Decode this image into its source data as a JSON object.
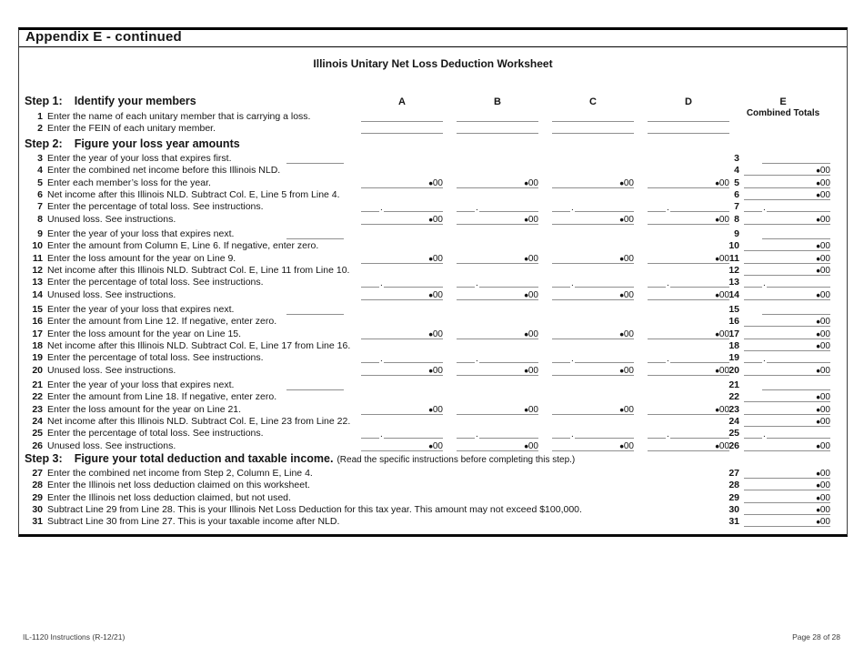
{
  "page": {
    "heading": "Appendix E - continued",
    "title": "Illinois Unitary Net Loss Deduction Worksheet",
    "footer_left": "IL-1120 Instructions (R-12/21)",
    "footer_right": "Page 28 of 28"
  },
  "columns": {
    "headers": [
      "A",
      "B",
      "C",
      "D",
      "E"
    ],
    "e_subheader": "Combined Totals"
  },
  "symbols": {
    "decimal": "•",
    "cents": "00",
    "period": "."
  },
  "steps": [
    {
      "label": "Step 1:",
      "title": "Identify your members",
      "note": ""
    },
    {
      "label": "Step 2:",
      "title": "Figure your loss year amounts",
      "note": ""
    },
    {
      "label": "Step 3:",
      "title": "Figure your total deduction and taxable income.",
      "note": "(Read the specific instructions before completing this step.)"
    }
  ],
  "rows": [
    {
      "num": "1",
      "type": "name",
      "text": "Enter the name of each unitary member that is carrying a loss."
    },
    {
      "num": "2",
      "type": "name",
      "text": "Enter the FEIN of each unitary member."
    },
    {
      "num": "3",
      "type": "year",
      "text": "Enter the year of your loss that expires first."
    },
    {
      "num": "4",
      "type": "amount_e",
      "text": "Enter the combined net income before this Illinois NLD."
    },
    {
      "num": "5",
      "type": "amount_all",
      "text": "Enter each member’s loss for the year."
    },
    {
      "num": "6",
      "type": "amount_e",
      "text": "Net income after this Illinois NLD. Subtract Col. E, Line 5 from Line 4."
    },
    {
      "num": "7",
      "type": "percent",
      "text": "Enter the percentage of total loss. See instructions."
    },
    {
      "num": "8",
      "type": "amount_all",
      "text": "Unused loss. See instructions."
    },
    {
      "num": "9",
      "type": "year",
      "text": "Enter the year of your loss that expires next."
    },
    {
      "num": "10",
      "type": "amount_e",
      "text": "Enter the amount from Column E, Line 6. If negative, enter zero."
    },
    {
      "num": "11",
      "type": "amount_all",
      "text": "Enter the loss amount for the year on Line 9."
    },
    {
      "num": "12",
      "type": "amount_e",
      "text": "Net income after this Illinois NLD. Subtract Col. E, Line 11 from Line 10."
    },
    {
      "num": "13",
      "type": "percent",
      "text": "Enter the percentage of total loss. See instructions."
    },
    {
      "num": "14",
      "type": "amount_all",
      "text": "Unused loss. See instructions."
    },
    {
      "num": "15",
      "type": "year",
      "text": "Enter the year of your loss that expires next."
    },
    {
      "num": "16",
      "type": "amount_e",
      "text": "Enter the amount from Line 12. If negative, enter zero."
    },
    {
      "num": "17",
      "type": "amount_all",
      "text": "Enter the loss amount for the year on Line 15."
    },
    {
      "num": "18",
      "type": "amount_e",
      "text": "Net income after this Illinois NLD. Subtract Col. E, Line 17 from Line 16."
    },
    {
      "num": "19",
      "type": "percent",
      "text": "Enter the percentage of total loss. See instructions."
    },
    {
      "num": "20",
      "type": "amount_all",
      "text": "Unused loss. See instructions."
    },
    {
      "num": "21",
      "type": "year",
      "text": "Enter the year of your loss that expires next."
    },
    {
      "num": "22",
      "type": "amount_e",
      "text": "Enter the amount from Line 18. If negative, enter zero."
    },
    {
      "num": "23",
      "type": "amount_all",
      "text": "Enter the loss amount for the year on Line 21."
    },
    {
      "num": "24",
      "type": "amount_e",
      "text": "Net income after this Illinois NLD. Subtract Col. E, Line 23 from Line 22."
    },
    {
      "num": "25",
      "type": "percent",
      "text": "Enter the percentage of total loss. See instructions."
    },
    {
      "num": "26",
      "type": "amount_all",
      "text": "Unused loss. See instructions."
    },
    {
      "num": "27",
      "type": "amount_e",
      "text": "Enter the combined net income from Step 2, Column E, Line 4."
    },
    {
      "num": "28",
      "type": "amount_e",
      "text": "Enter the Illinois net loss deduction claimed on this worksheet."
    },
    {
      "num": "29",
      "type": "amount_e",
      "text": "Enter the Illinois net loss deduction claimed, but not used."
    },
    {
      "num": "30",
      "type": "amount_e",
      "text": "Subtract Line 29 from Line 28. This is your Illinois Net Loss Deduction for this tax year. This amount may not exceed $100,000."
    },
    {
      "num": "31",
      "type": "amount_e",
      "text": "Subtract Line 30 from Line 27. This is your taxable income after NLD."
    }
  ]
}
